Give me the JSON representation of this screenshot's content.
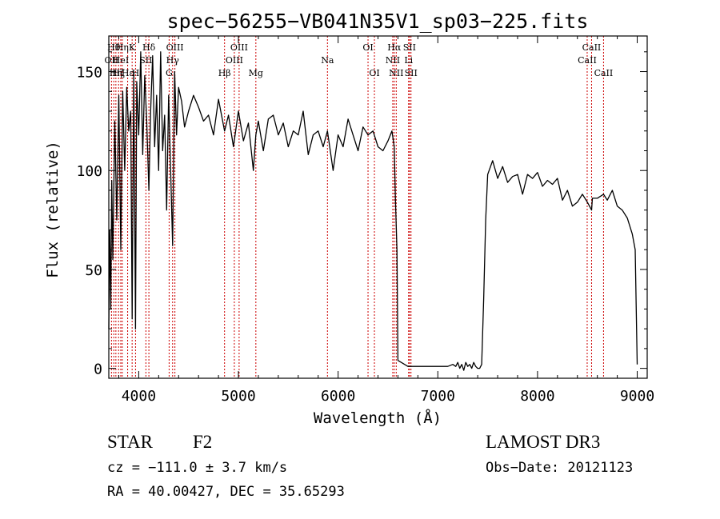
{
  "chart_data": {
    "type": "line",
    "title": "spec−56255−VB041N35V1_sp03−225.fits",
    "xlabel": "Wavelength (Å)",
    "ylabel": "Flux (relative)",
    "xlim": [
      3700,
      9100
    ],
    "ylim": [
      -5,
      168
    ],
    "xticks": [
      4000,
      5000,
      6000,
      7000,
      8000,
      9000
    ],
    "yticks": [
      0,
      50,
      100,
      150
    ],
    "series": [
      {
        "name": "flux",
        "x": [
          3700,
          3710,
          3720,
          3730,
          3740,
          3760,
          3780,
          3800,
          3820,
          3840,
          3860,
          3880,
          3900,
          3920,
          3934,
          3950,
          3968,
          3980,
          4000,
          4020,
          4040,
          4060,
          4080,
          4102,
          4120,
          4140,
          4160,
          4180,
          4200,
          4220,
          4240,
          4260,
          4280,
          4300,
          4320,
          4340,
          4360,
          4380,
          4400,
          4430,
          4460,
          4500,
          4550,
          4600,
          4650,
          4700,
          4750,
          4800,
          4861,
          4900,
          4950,
          5000,
          5050,
          5100,
          5150,
          5175,
          5200,
          5250,
          5300,
          5350,
          5400,
          5450,
          5500,
          5550,
          5600,
          5650,
          5700,
          5750,
          5800,
          5850,
          5893,
          5950,
          6000,
          6050,
          6100,
          6150,
          6200,
          6250,
          6300,
          6350,
          6400,
          6450,
          6500,
          6540,
          6563,
          6575,
          6590,
          6600,
          6700,
          6800,
          6900,
          7000,
          7100,
          7150,
          7180,
          7200,
          7220,
          7240,
          7260,
          7280,
          7300,
          7320,
          7340,
          7360,
          7380,
          7400,
          7420,
          7440,
          7460,
          7480,
          7500,
          7550,
          7600,
          7650,
          7700,
          7750,
          7800,
          7850,
          7900,
          7950,
          8000,
          8050,
          8100,
          8150,
          8200,
          8250,
          8300,
          8350,
          8400,
          8450,
          8500,
          8542,
          8550,
          8600,
          8662,
          8700,
          8750,
          8800,
          8850,
          8900,
          8950,
          8980,
          9000
        ],
        "values": [
          20,
          70,
          30,
          95,
          55,
          125,
          75,
          138,
          60,
          140,
          100,
          142,
          120,
          130,
          25,
          150,
          20,
          145,
          118,
          160,
          108,
          148,
          125,
          90,
          130,
          158,
          112,
          138,
          100,
          160,
          110,
          128,
          80,
          138,
          100,
          62,
          150,
          118,
          142,
          135,
          122,
          130,
          138,
          132,
          125,
          128,
          118,
          136,
          120,
          128,
          112,
          130,
          115,
          124,
          100,
          118,
          125,
          110,
          126,
          128,
          118,
          124,
          112,
          120,
          118,
          130,
          108,
          118,
          120,
          112,
          120,
          100,
          118,
          112,
          126,
          118,
          110,
          122,
          118,
          120,
          112,
          110,
          115,
          120,
          112,
          85,
          60,
          4,
          1,
          1,
          1,
          1,
          1,
          2,
          1,
          3,
          0,
          2,
          -1,
          3,
          1,
          2,
          0,
          3,
          1,
          0,
          0,
          2,
          35,
          75,
          98,
          105,
          96,
          102,
          94,
          97,
          98,
          88,
          98,
          96,
          99,
          92,
          95,
          93,
          96,
          85,
          90,
          82,
          84,
          88,
          84,
          80,
          86,
          86,
          88,
          85,
          90,
          82,
          80,
          76,
          68,
          60,
          2
        ]
      }
    ],
    "line_markers": [
      {
        "wavelength": 3727,
        "label": "OII",
        "row": 2
      },
      {
        "wavelength": 3750,
        "label": "Hθ",
        "row": 1
      },
      {
        "wavelength": 3771,
        "label": "Hη",
        "row": 3
      },
      {
        "wavelength": 3798,
        "label": "Hζ",
        "row": 3
      },
      {
        "wavelength": 3820,
        "label": "HeI",
        "row": 2
      },
      {
        "wavelength": 3835,
        "label": "Hη",
        "row": 1
      },
      {
        "wavelength": 3889,
        "label": "Hε",
        "row": 3
      },
      {
        "wavelength": 3934,
        "label": "K",
        "row": 1
      },
      {
        "wavelength": 3968,
        "label": "H",
        "row": 3
      },
      {
        "wavelength": 4072,
        "label": "SII",
        "row": 2
      },
      {
        "wavelength": 4102,
        "label": "Hδ",
        "row": 1
      },
      {
        "wavelength": 4305,
        "label": "G",
        "row": 3
      },
      {
        "wavelength": 4340,
        "label": "Hγ",
        "row": 2
      },
      {
        "wavelength": 4363,
        "label": "OIII",
        "row": 1
      },
      {
        "wavelength": 4861,
        "label": "Hβ",
        "row": 3
      },
      {
        "wavelength": 4959,
        "label": "OIII",
        "row": 2
      },
      {
        "wavelength": 5007,
        "label": "OIII",
        "row": 1
      },
      {
        "wavelength": 5175,
        "label": "Mg",
        "row": 3
      },
      {
        "wavelength": 5893,
        "label": "Na",
        "row": 2
      },
      {
        "wavelength": 6300,
        "label": "OI",
        "row": 1
      },
      {
        "wavelength": 6364,
        "label": "OI",
        "row": 3
      },
      {
        "wavelength": 6548,
        "label": "NII",
        "row": 2
      },
      {
        "wavelength": 6563,
        "label": "Hα",
        "row": 1
      },
      {
        "wavelength": 6583,
        "label": "NII",
        "row": 3
      },
      {
        "wavelength": 6707,
        "label": "Li",
        "row": 2
      },
      {
        "wavelength": 6716,
        "label": "SII",
        "row": 1
      },
      {
        "wavelength": 6731,
        "label": "SII",
        "row": 3
      },
      {
        "wavelength": 8498,
        "label": "CaII",
        "row": 2
      },
      {
        "wavelength": 8542,
        "label": "CaII",
        "row": 1
      },
      {
        "wavelength": 8662,
        "label": "CaII",
        "row": 3
      }
    ]
  },
  "info": {
    "object_class": "STAR",
    "subclass": "F2",
    "cz": "cz = −111.0 ± 3.7 km/s",
    "coords": "RA =  40.00427, DEC =  35.65293",
    "survey": "LAMOST DR3",
    "obs_date": "Obs−Date: 20121123"
  },
  "colors": {
    "background": "#ffffff",
    "ink": "#000000",
    "marker": "#cc0000"
  }
}
